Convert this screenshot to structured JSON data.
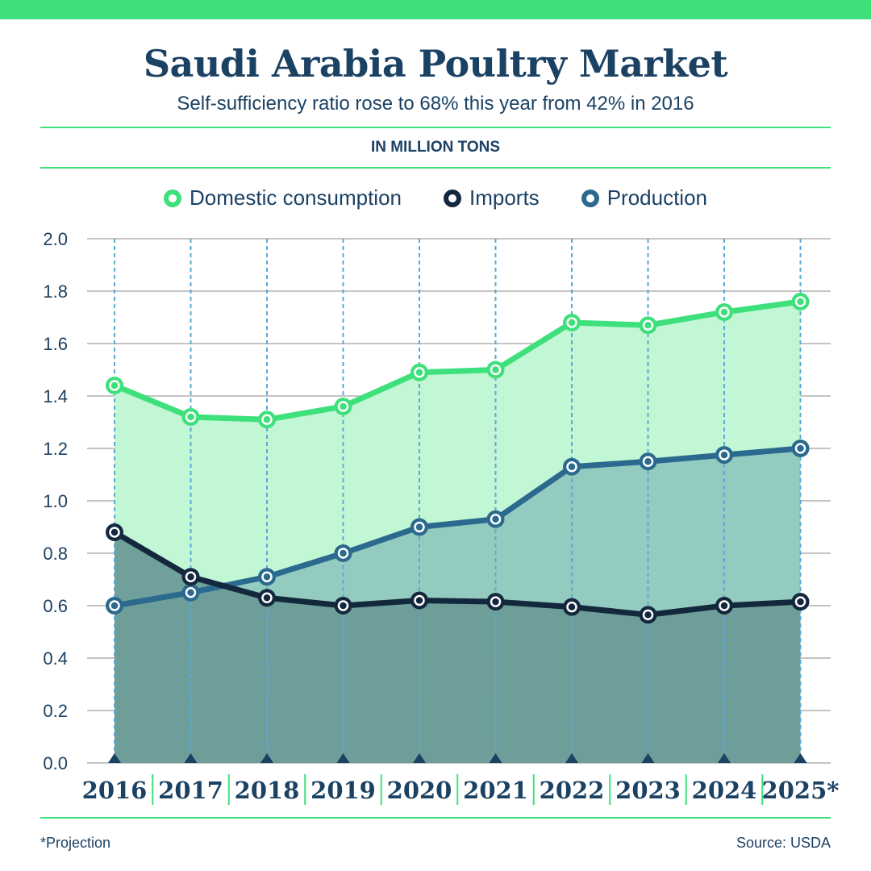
{
  "header": {
    "title": "Saudi Arabia Poultry Market",
    "subtitle": "Self-sufficiency ratio rose to 68% this year from 42% in 2016",
    "units": "IN MILLION TONS"
  },
  "footer": {
    "footnote": "*Projection",
    "source": "Source: USDA"
  },
  "colors": {
    "accent_green": "#3ee07b",
    "navy": "#1b4163",
    "production_blue": "#2b6a8e",
    "imports_dark": "#14283d",
    "consumption_fill": "#c2f7d5",
    "production_fill": "#93cbc0",
    "imports_fill": "#6b9b98",
    "grid": "#c4c4c4",
    "year_lines": "#5aa9d6"
  },
  "chart_data": {
    "type": "area",
    "title": "Saudi Arabia Poultry Market",
    "subtitle": "Self-sufficiency ratio rose to 68% this year from 42% in 2016",
    "units": "IN MILLION TONS",
    "categories": [
      "2016",
      "2017",
      "2018",
      "2019",
      "2020",
      "2021",
      "2022",
      "2023",
      "2024",
      "2025*"
    ],
    "y_ticks": [
      "0.0",
      "0.2",
      "0.4",
      "0.6",
      "0.8",
      "1.0",
      "1.2",
      "1.4",
      "1.6",
      "1.8",
      "2.0"
    ],
    "ylim": [
      0,
      2.0
    ],
    "grid": true,
    "legend_position": "top-center",
    "series": [
      {
        "name": "Domestic consumption",
        "color": "#3ee07b",
        "values": [
          1.44,
          1.32,
          1.31,
          1.36,
          1.49,
          1.5,
          1.68,
          1.67,
          1.72,
          1.76
        ]
      },
      {
        "name": "Imports",
        "color": "#14283d",
        "values": [
          0.88,
          0.71,
          0.63,
          0.6,
          0.62,
          0.615,
          0.595,
          0.565,
          0.6,
          0.615
        ]
      },
      {
        "name": "Production",
        "color": "#2b6a8e",
        "values": [
          0.6,
          0.65,
          0.71,
          0.8,
          0.9,
          0.93,
          1.13,
          1.15,
          1.175,
          1.2
        ]
      }
    ]
  }
}
